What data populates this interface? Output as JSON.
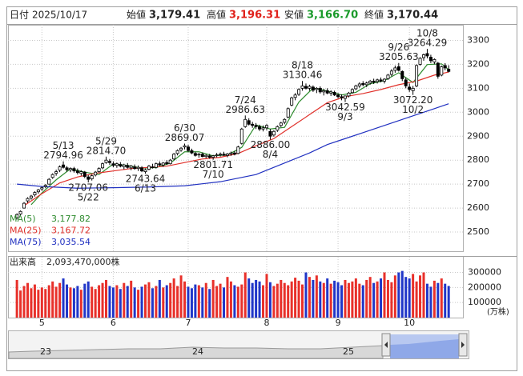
{
  "header": {
    "date_label": "日付",
    "date": "2025/10/17",
    "open_label": "始値",
    "open": {
      "value": 3179.41,
      "label": "3,179.41"
    },
    "high_label": "高値",
    "high": {
      "value": 3196.31,
      "label": "3,196.31"
    },
    "low_label": "安値",
    "low": {
      "value": 3166.7,
      "label": "3,166.70"
    },
    "close_label": "終値",
    "close": {
      "value": 3170.44,
      "label": "3,170.44"
    }
  },
  "chart_data": {
    "type": "candlestick",
    "up_color": "#ffffff",
    "down_color": "#000000",
    "ohlc": [
      [
        2560,
        2578,
        2552,
        2573
      ],
      [
        2575,
        2590,
        2570,
        2586
      ],
      [
        2600,
        2625,
        2598,
        2620
      ],
      [
        2630,
        2645,
        2622,
        2640
      ],
      [
        2642,
        2655,
        2635,
        2650
      ],
      [
        2655,
        2670,
        2648,
        2665
      ],
      [
        2668,
        2680,
        2660,
        2676
      ],
      [
        2680,
        2690,
        2672,
        2685
      ],
      [
        2690,
        2700,
        2683,
        2695
      ],
      [
        2700,
        2725,
        2698,
        2720
      ],
      [
        2728,
        2745,
        2722,
        2740
      ],
      [
        2745,
        2760,
        2735,
        2752
      ],
      [
        2758,
        2778,
        2750,
        2772
      ],
      [
        2780,
        2794.96,
        2765,
        2770
      ],
      [
        2768,
        2775,
        2752,
        2760
      ],
      [
        2760,
        2770,
        2750,
        2765
      ],
      [
        2765,
        2772,
        2748,
        2755
      ],
      [
        2755,
        2765,
        2740,
        2748
      ],
      [
        2745,
        2758,
        2735,
        2752
      ],
      [
        2750,
        2755,
        2725,
        2732
      ],
      [
        2730,
        2738,
        2707.06,
        2720
      ],
      [
        2722,
        2740,
        2715,
        2735
      ],
      [
        2738,
        2755,
        2732,
        2750
      ],
      [
        2752,
        2770,
        2748,
        2765
      ],
      [
        2768,
        2790,
        2762,
        2785
      ],
      [
        2790,
        2814.7,
        2785,
        2800
      ],
      [
        2795,
        2805,
        2780,
        2790
      ],
      [
        2785,
        2795,
        2770,
        2778
      ],
      [
        2778,
        2790,
        2768,
        2785
      ],
      [
        2782,
        2792,
        2770,
        2775
      ],
      [
        2772,
        2785,
        2762,
        2780
      ],
      [
        2778,
        2788,
        2765,
        2770
      ],
      [
        2768,
        2780,
        2758,
        2775
      ],
      [
        2772,
        2782,
        2760,
        2765
      ],
      [
        2765,
        2778,
        2755,
        2770
      ],
      [
        2768,
        2775,
        2750,
        2755
      ],
      [
        2752,
        2765,
        2743.64,
        2760
      ],
      [
        2762,
        2780,
        2758,
        2775
      ],
      [
        2772,
        2785,
        2765,
        2770
      ],
      [
        2770,
        2790,
        2765,
        2785
      ],
      [
        2785,
        2795,
        2775,
        2780
      ],
      [
        2780,
        2792,
        2772,
        2788
      ],
      [
        2790,
        2800,
        2780,
        2785
      ],
      [
        2785,
        2805,
        2782,
        2800
      ],
      [
        2805,
        2830,
        2800,
        2825
      ],
      [
        2828,
        2845,
        2820,
        2840
      ],
      [
        2842,
        2855,
        2835,
        2850
      ],
      [
        2855,
        2869.07,
        2845,
        2860
      ],
      [
        2855,
        2865,
        2835,
        2840
      ],
      [
        2840,
        2848,
        2825,
        2830
      ],
      [
        2828,
        2835,
        2815,
        2820
      ],
      [
        2822,
        2830,
        2810,
        2825
      ],
      [
        2825,
        2832,
        2812,
        2815
      ],
      [
        2815,
        2825,
        2808,
        2820
      ],
      [
        2818,
        2826,
        2806,
        2812
      ],
      [
        2812,
        2822,
        2801.71,
        2818
      ],
      [
        2820,
        2830,
        2812,
        2822
      ],
      [
        2822,
        2832,
        2815,
        2825
      ],
      [
        2825,
        2835,
        2818,
        2820
      ],
      [
        2820,
        2830,
        2812,
        2826
      ],
      [
        2826,
        2836,
        2818,
        2830
      ],
      [
        2830,
        2838,
        2820,
        2825
      ],
      [
        2828,
        2860,
        2825,
        2855
      ],
      [
        2870,
        2935,
        2865,
        2930
      ],
      [
        2940,
        2986.63,
        2935,
        2970
      ],
      [
        2965,
        2975,
        2945,
        2950
      ],
      [
        2950,
        2960,
        2935,
        2945
      ],
      [
        2945,
        2955,
        2930,
        2940
      ],
      [
        2940,
        2948,
        2922,
        2930
      ],
      [
        2930,
        2945,
        2920,
        2935
      ],
      [
        2935,
        2950,
        2925,
        2945
      ],
      [
        2920,
        2930,
        2886,
        2900
      ],
      [
        2905,
        2925,
        2898,
        2920
      ],
      [
        2925,
        2945,
        2918,
        2940
      ],
      [
        2945,
        2960,
        2938,
        2955
      ],
      [
        2958,
        2975,
        2950,
        2970
      ],
      [
        2980,
        3020,
        2975,
        3015
      ],
      [
        3030,
        3065,
        3025,
        3060
      ],
      [
        3062,
        3080,
        3050,
        3072
      ],
      [
        3075,
        3100,
        3068,
        3095
      ],
      [
        3100,
        3130.46,
        3090,
        3110
      ],
      [
        3108,
        3120,
        3095,
        3100
      ],
      [
        3100,
        3115,
        3090,
        3108
      ],
      [
        3105,
        3112,
        3085,
        3092
      ],
      [
        3095,
        3105,
        3080,
        3100
      ],
      [
        3100,
        3108,
        3078,
        3085
      ],
      [
        3085,
        3098,
        3070,
        3090
      ],
      [
        3090,
        3100,
        3075,
        3080
      ],
      [
        3080,
        3092,
        3068,
        3085
      ],
      [
        3083,
        3090,
        3068,
        3072
      ],
      [
        3072,
        3080,
        3058,
        3065
      ],
      [
        3065,
        3075,
        3050,
        3060
      ],
      [
        3058,
        3070,
        3042.59,
        3068
      ],
      [
        3068,
        3085,
        3062,
        3080
      ],
      [
        3082,
        3100,
        3078,
        3095
      ],
      [
        3098,
        3115,
        3092,
        3110
      ],
      [
        3110,
        3125,
        3102,
        3118
      ],
      [
        3120,
        3130,
        3108,
        3115
      ],
      [
        3115,
        3128,
        3105,
        3122
      ],
      [
        3122,
        3135,
        3115,
        3130
      ],
      [
        3130,
        3140,
        3118,
        3125
      ],
      [
        3128,
        3140,
        3120,
        3135
      ],
      [
        3135,
        3145,
        3125,
        3130
      ],
      [
        3130,
        3142,
        3120,
        3138
      ],
      [
        3140,
        3160,
        3135,
        3155
      ],
      [
        3158,
        3180,
        3150,
        3172
      ],
      [
        3175,
        3195,
        3165,
        3185
      ],
      [
        3190,
        3205.63,
        3170,
        3175
      ],
      [
        3170,
        3175,
        3130,
        3140
      ],
      [
        3135,
        3145,
        3100,
        3110
      ],
      [
        3105,
        3120,
        3085,
        3095
      ],
      [
        3090,
        3110,
        3072.2,
        3100
      ],
      [
        3110,
        3200,
        3105,
        3195
      ],
      [
        3200,
        3230,
        3195,
        3225
      ],
      [
        3228,
        3245,
        3215,
        3240
      ],
      [
        3245,
        3264.29,
        3225,
        3235
      ],
      [
        3230,
        3240,
        3205,
        3215
      ],
      [
        3210,
        3225,
        3200,
        3220
      ],
      [
        3205,
        3210,
        3140,
        3150
      ],
      [
        3155,
        3195,
        3150,
        3190
      ],
      [
        3195,
        3205,
        3175,
        3185
      ],
      [
        3179.41,
        3196.31,
        3166.7,
        3170.44
      ]
    ],
    "xlim": [
      -2.5,
      125
    ],
    "xticks": [
      {
        "value": 7,
        "label": "5"
      },
      {
        "value": 27,
        "label": "6"
      },
      {
        "value": 48,
        "label": "7"
      },
      {
        "value": 70,
        "label": "8"
      },
      {
        "value": 90,
        "label": "9"
      },
      {
        "value": 110,
        "label": "10"
      }
    ],
    "ylim": [
      2420,
      3365
    ],
    "yticks": [
      2500,
      2600,
      2700,
      2800,
      2900,
      3000,
      3100,
      3200,
      3300
    ],
    "grid": true,
    "annotations": [
      {
        "date": "5/13",
        "value": 2794.96
      },
      {
        "date": "5/22",
        "value": 2707.06
      },
      {
        "date": "5/29",
        "value": {
          "value": 2814.7,
          "label": "2814.70"
        }
      },
      {
        "date": "6/13",
        "value": 2743.64
      },
      {
        "date": "6/30",
        "value": 2869.07
      },
      {
        "date": "7/10",
        "value": 2801.71
      },
      {
        "date": "7/24",
        "value": 2986.63
      },
      {
        "date": "8/4",
        "value": {
          "value": 2886,
          "label": "2886.00"
        }
      },
      {
        "date": "8/18",
        "value": 3130.46
      },
      {
        "date": "9/3",
        "value": 3042.59
      },
      {
        "date": "9/26",
        "value": 3205.63
      },
      {
        "date": "10/2",
        "value": {
          "value": 3072.2,
          "label": "3072.20"
        }
      },
      {
        "date": "10/8",
        "value": 3264.29
      }
    ],
    "series": [
      {
        "name": "MA(5)",
        "color": "#2e8b2e",
        "last": {
          "value": 3177.82,
          "label": "3,177.82"
        },
        "x": [
          4,
          7,
          11,
          15,
          19,
          23,
          27,
          31,
          35,
          39,
          43,
          47,
          51,
          55,
          59,
          63,
          67,
          71,
          75,
          79,
          83,
          87,
          91,
          95,
          99,
          103,
          107,
          111,
          115,
          119,
          121
        ],
        "values": [
          2614,
          2663,
          2718,
          2764,
          2750,
          2740,
          2784,
          2778,
          2767,
          2769,
          2788,
          2835,
          2835,
          2818,
          2822,
          2853,
          2947,
          2930,
          2937,
          3042,
          3101,
          3089,
          3072,
          3083,
          3119,
          3132,
          3165,
          3124,
          3199,
          3202,
          3177.82
        ]
      },
      {
        "name": "MA(25)",
        "color": "#e0302a",
        "last": {
          "value": 3167.72,
          "label": "3,167.72"
        },
        "x": [
          2,
          7,
          12,
          17,
          22,
          27,
          32,
          37,
          42,
          47,
          52,
          57,
          62,
          67,
          72,
          77,
          82,
          87,
          92,
          97,
          102,
          107,
          112,
          117,
          121
        ],
        "values": [
          2610,
          2660,
          2705,
          2730,
          2745,
          2755,
          2765,
          2770,
          2775,
          2790,
          2805,
          2812,
          2828,
          2860,
          2890,
          2940,
          2990,
          3040,
          3065,
          3078,
          3095,
          3115,
          3130,
          3155,
          3167.72
        ]
      },
      {
        "name": "MA(75)",
        "color": "#2030c0",
        "last": {
          "value": 3035.54,
          "label": "3,035.54"
        },
        "x": [
          0,
          7,
          17,
          27,
          37,
          47,
          57,
          62,
          67,
          72,
          77,
          82,
          87,
          92,
          97,
          102,
          107,
          112,
          117,
          121
        ],
        "values": [
          2700,
          2690,
          2683,
          2685,
          2688,
          2693,
          2710,
          2725,
          2740,
          2770,
          2800,
          2830,
          2865,
          2890,
          2915,
          2940,
          2965,
          2990,
          3015,
          3035.54
        ]
      }
    ],
    "volume": {
      "title": "出来高",
      "total": "2,093,470,000株",
      "unit": "(万株)",
      "up_color": "#e8302a",
      "down_color": "#2036c8",
      "ylim": [
        0,
        340000
      ],
      "yticks": [
        100000,
        200000,
        300000
      ],
      "values": [
        250000,
        180000,
        210000,
        230000,
        195000,
        220000,
        185000,
        200000,
        190000,
        215000,
        240000,
        205000,
        230000,
        260000,
        220000,
        200000,
        195000,
        210000,
        185000,
        225000,
        240000,
        205000,
        190000,
        215000,
        230000,
        250000,
        210000,
        200000,
        215000,
        190000,
        230000,
        210000,
        245000,
        200000,
        185000,
        205000,
        220000,
        235000,
        195000,
        210000,
        250000,
        200000,
        215000,
        230000,
        260000,
        210000,
        280000,
        240000,
        205000,
        195000,
        220000,
        215000,
        200000,
        230000,
        190000,
        250000,
        210000,
        225000,
        200000,
        270000,
        240000,
        215000,
        205000,
        220000,
        300000,
        260000,
        230000,
        250000,
        240000,
        215000,
        290000,
        235000,
        210000,
        225000,
        250000,
        230000,
        215000,
        240000,
        265000,
        245000,
        220000,
        300000,
        270000,
        250000,
        280000,
        240000,
        230000,
        260000,
        225000,
        245000,
        235000,
        215000,
        250000,
        230000,
        240000,
        260000,
        225000,
        215000,
        250000,
        270000,
        230000,
        240000,
        260000,
        300000,
        250000,
        235000,
        280000,
        300000,
        310000,
        270000,
        260000,
        290000,
        240000,
        280000,
        300000,
        225000,
        205000,
        245000,
        230000,
        260000,
        225000,
        210000
      ]
    }
  },
  "navigator": {
    "labels": [
      "23",
      "24",
      "25"
    ]
  }
}
